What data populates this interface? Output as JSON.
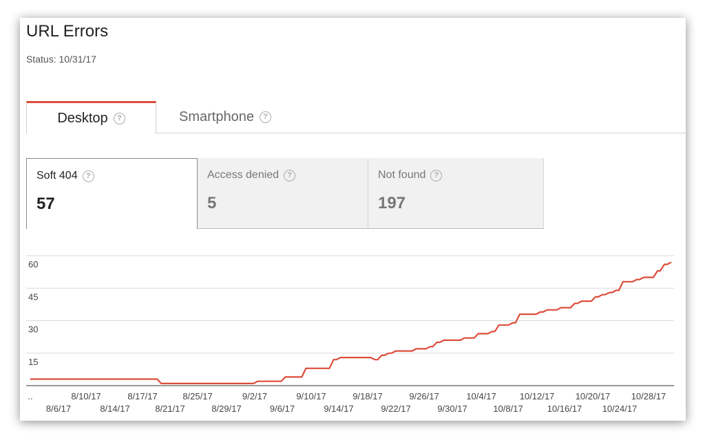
{
  "page": {
    "title": "URL Errors",
    "status": "Status: 10/31/17"
  },
  "tabs": [
    {
      "label": "Desktop",
      "active": true
    },
    {
      "label": "Smartphone",
      "active": false
    }
  ],
  "cards": [
    {
      "label": "Soft 404",
      "value": "57",
      "active": true
    },
    {
      "label": "Access denied",
      "value": "5",
      "active": false
    },
    {
      "label": "Not found",
      "value": "197",
      "active": false
    }
  ],
  "help_icon": "question-circle-icon",
  "colors": {
    "accent": "#dd4b39",
    "line": "#dd4b39",
    "grid": "#d9d9d9"
  },
  "chart_data": {
    "type": "line",
    "title": "",
    "xlabel": "",
    "ylabel": "",
    "ylim": [
      0,
      60
    ],
    "yticks": [
      "60",
      "45",
      "30",
      "15"
    ],
    "xticks_upper": [
      "..",
      "8/10/17",
      "8/17/17",
      "8/25/17",
      "9/2/17",
      "9/10/17",
      "9/18/17",
      "9/26/17",
      "10/4/17",
      "10/12/17",
      "10/20/17",
      "10/28/17"
    ],
    "xticks_lower": [
      "8/6/17",
      "8/14/17",
      "8/21/17",
      "8/29/17",
      "9/6/17",
      "9/14/17",
      "9/22/17",
      "9/30/17",
      "10/8/17",
      "10/16/17",
      "10/24/17"
    ],
    "grid": true,
    "series": [
      {
        "values": [
          3,
          3,
          3,
          3,
          3,
          3,
          3,
          3,
          3,
          3,
          3,
          3,
          3,
          3,
          3,
          3,
          3,
          3,
          3,
          1,
          1,
          1,
          1,
          1,
          1,
          1,
          1,
          1,
          1,
          1,
          1,
          1,
          1,
          2,
          2,
          2,
          2,
          4,
          4,
          4,
          8,
          8,
          8,
          8,
          12,
          13,
          13,
          13,
          13,
          13,
          12,
          14,
          15,
          16,
          16,
          16,
          17,
          17,
          18,
          20,
          21,
          21,
          21,
          22,
          22,
          24,
          24,
          25,
          28,
          28,
          29,
          33,
          33,
          33,
          34,
          35,
          35,
          36,
          36,
          38,
          39,
          39,
          41,
          42,
          43,
          44,
          48,
          48,
          49,
          50,
          50,
          53,
          56,
          57
        ]
      }
    ]
  }
}
